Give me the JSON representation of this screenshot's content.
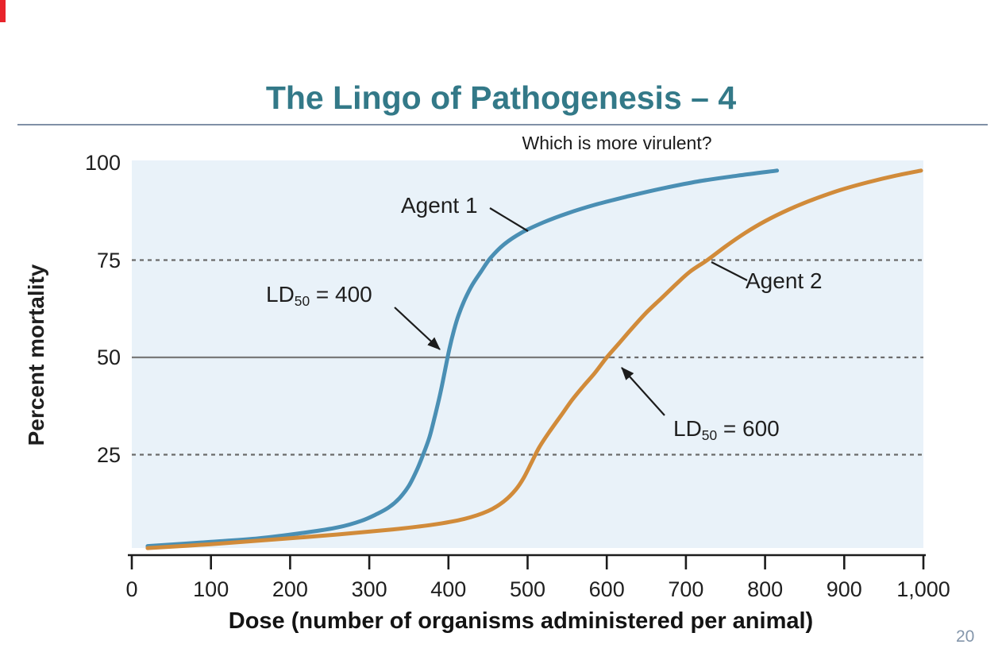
{
  "slide": {
    "title": "The Lingo of Pathogenesis – 4",
    "page_number": "20",
    "colors": {
      "title": "#337988",
      "accent_bar": "#e8242b",
      "rule": "#8090a6"
    }
  },
  "chart_data": {
    "type": "line",
    "title": "Which is more virulent?",
    "xlabel": "Dose (number of organisms administered per animal)",
    "ylabel": "Percent mortality",
    "xlim": [
      0,
      1000
    ],
    "ylim": [
      0,
      100
    ],
    "plot_bg": "#e9f2f9",
    "legend_position": "none",
    "grid": "horizontal dashed at 25 and 75, solid-then-dashed at 50",
    "x_ticks": [
      {
        "label": "0",
        "value": 0
      },
      {
        "label": "100",
        "value": 100
      },
      {
        "label": "200",
        "value": 200
      },
      {
        "label": "300",
        "value": 300
      },
      {
        "label": "400",
        "value": 400
      },
      {
        "label": "500",
        "value": 500
      },
      {
        "label": "600",
        "value": 600
      },
      {
        "label": "700",
        "value": 700
      },
      {
        "label": "800",
        "value": 800
      },
      {
        "label": "900",
        "value": 900
      },
      {
        "label": "1,000",
        "value": 1000
      }
    ],
    "y_ticks": [
      {
        "label": "100",
        "value": 100
      },
      {
        "label": "75",
        "value": 75
      },
      {
        "label": "50",
        "value": 50
      },
      {
        "label": "25",
        "value": 25
      }
    ],
    "gridlines": [
      {
        "value": 75,
        "style": "dashed"
      },
      {
        "value": 50,
        "style": "solid_then_dashed",
        "solid_until": 605
      },
      {
        "value": 25,
        "style": "dashed"
      }
    ],
    "series": [
      {
        "name": "Agent 1",
        "color": "#4a8fb4",
        "ld50": 400,
        "points": [
          [
            20,
            1.5
          ],
          [
            100,
            2.6
          ],
          [
            160,
            3.5
          ],
          [
            220,
            5
          ],
          [
            260,
            6.3
          ],
          [
            290,
            8
          ],
          [
            310,
            9.8
          ],
          [
            325,
            11.5
          ],
          [
            338,
            13.8
          ],
          [
            350,
            17
          ],
          [
            360,
            21
          ],
          [
            368,
            25
          ],
          [
            376,
            29.5
          ],
          [
            383,
            35
          ],
          [
            390,
            41
          ],
          [
            396,
            47
          ],
          [
            401,
            52
          ],
          [
            407,
            57
          ],
          [
            413,
            61
          ],
          [
            421,
            65
          ],
          [
            430,
            68.6
          ],
          [
            441,
            72
          ],
          [
            453,
            75.5
          ],
          [
            470,
            79
          ],
          [
            492,
            82
          ],
          [
            520,
            84.7
          ],
          [
            550,
            87
          ],
          [
            585,
            89.2
          ],
          [
            625,
            91.3
          ],
          [
            670,
            93.4
          ],
          [
            715,
            95.2
          ],
          [
            765,
            96.7
          ],
          [
            815,
            98
          ]
        ]
      },
      {
        "name": "Agent 2",
        "color": "#d18b3a",
        "ld50": 600,
        "points": [
          [
            20,
            1
          ],
          [
            100,
            2
          ],
          [
            180,
            3.2
          ],
          [
            260,
            4.5
          ],
          [
            330,
            5.8
          ],
          [
            380,
            7
          ],
          [
            420,
            8.5
          ],
          [
            450,
            10.5
          ],
          [
            470,
            13
          ],
          [
            485,
            16
          ],
          [
            495,
            19
          ],
          [
            505,
            23
          ],
          [
            515,
            27
          ],
          [
            528,
            31
          ],
          [
            542,
            35
          ],
          [
            556,
            39
          ],
          [
            570,
            42.5
          ],
          [
            585,
            46
          ],
          [
            600,
            50
          ],
          [
            615,
            53.5
          ],
          [
            632,
            57.5
          ],
          [
            650,
            61.5
          ],
          [
            668,
            65
          ],
          [
            686,
            68.5
          ],
          [
            705,
            72
          ],
          [
            727,
            75
          ],
          [
            750,
            78.5
          ],
          [
            775,
            82
          ],
          [
            800,
            85
          ],
          [
            830,
            88
          ],
          [
            860,
            90.5
          ],
          [
            895,
            93
          ],
          [
            930,
            95
          ],
          [
            965,
            96.7
          ],
          [
            997,
            98
          ]
        ]
      }
    ],
    "annotations": {
      "ld50_1": {
        "prefix": "LD",
        "sub": "50",
        "rest": " = 400"
      },
      "ld50_2": {
        "prefix": "LD",
        "sub": "50",
        "rest": " = 600"
      }
    }
  }
}
